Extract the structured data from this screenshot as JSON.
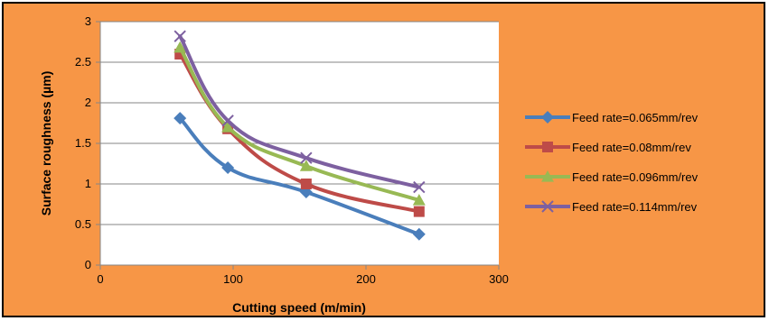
{
  "chart_data": {
    "type": "line",
    "title": "",
    "xlabel": "Cutting speed (m/min)",
    "ylabel": "Surface roughness (µm)",
    "xlim": [
      0,
      300
    ],
    "ylim": [
      0,
      3
    ],
    "x_ticks": [
      "0",
      "100",
      "200",
      "300"
    ],
    "y_ticks": [
      "0",
      "0.5",
      "1",
      "1.5",
      "2",
      "2.5",
      "3"
    ],
    "grid": "horizontal",
    "plot_background": "#ffffff",
    "chart_background": "#f79646",
    "legend_position": "right",
    "x": [
      60,
      96,
      155,
      240
    ],
    "series": [
      {
        "name": "Feed rate=0.065mm/rev",
        "values": [
          1.81,
          1.2,
          0.9,
          0.38
        ],
        "color": "#4a7ebb",
        "marker": "diamond"
      },
      {
        "name": "Feed rate=0.08mm/rev",
        "values": [
          2.6,
          1.68,
          1.0,
          0.66
        ],
        "color": "#be4b48",
        "marker": "square"
      },
      {
        "name": "Feed rate=0.096mm/rev",
        "values": [
          2.68,
          1.7,
          1.22,
          0.8
        ],
        "color": "#98b954",
        "marker": "triangle"
      },
      {
        "name": "Feed rate=0.114mm/rev",
        "values": [
          2.82,
          1.78,
          1.32,
          0.96
        ],
        "color": "#7d60a0",
        "marker": "x"
      }
    ]
  }
}
